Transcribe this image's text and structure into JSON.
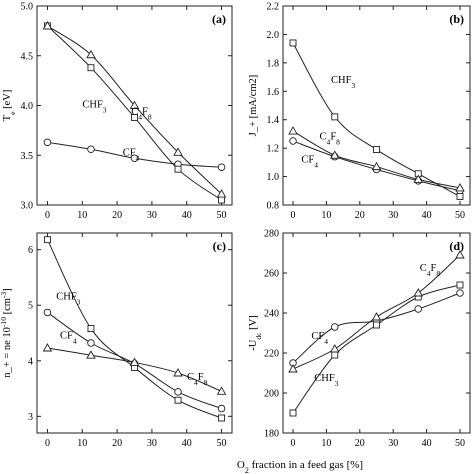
{
  "figure": {
    "shared_xlabel_html": "O<tspan baseline-shift='sub' font-size='8'>2</tspan> fraction in a feed gas [%]",
    "shared_xlabel": "O2 fraction in a feed gas [%]"
  },
  "chart_data": [
    {
      "id": "a",
      "type": "line",
      "panel_label": "(a)",
      "ylabel": "T_e [eV]",
      "xlim": [
        -3,
        53
      ],
      "ylim": [
        3.0,
        5.0
      ],
      "xticks": [
        0,
        10,
        20,
        30,
        40,
        50
      ],
      "yticks": [
        3.0,
        3.5,
        4.0,
        4.5,
        5.0
      ],
      "yticklabels": [
        "3.0",
        "3.5",
        "4.0",
        "4.5",
        "5.0"
      ],
      "x": [
        0,
        12.5,
        25,
        37.5,
        50
      ],
      "series": [
        {
          "name": "CF4",
          "marker": "circle",
          "values": [
            3.63,
            3.56,
            3.47,
            3.41,
            3.38
          ]
        },
        {
          "name": "CHF3",
          "marker": "square",
          "values": [
            4.8,
            4.38,
            3.88,
            3.36,
            3.05
          ]
        },
        {
          "name": "C4F8",
          "marker": "triangle",
          "values": [
            4.8,
            4.51,
            4.0,
            3.53,
            3.11
          ]
        }
      ],
      "labels": [
        {
          "text": "CHF3",
          "x": 13.5,
          "y": 3.98
        },
        {
          "text": "C4F8",
          "x": 27,
          "y": 3.91
        },
        {
          "text": "CF4",
          "x": 24,
          "y": 3.5
        }
      ]
    },
    {
      "id": "b",
      "type": "line",
      "panel_label": "(b)",
      "ylabel": "J+ [mA/cm2]",
      "xlim": [
        -3,
        53
      ],
      "ylim": [
        0.8,
        2.2
      ],
      "xticks": [
        0,
        10,
        20,
        30,
        40,
        50
      ],
      "yticks": [
        0.8,
        1.0,
        1.2,
        1.4,
        1.6,
        1.8,
        2.0,
        2.2
      ],
      "yticklabels": [
        "0.8",
        "1.0",
        "1.2",
        "1.4",
        "1.6",
        "1.8",
        "2.0",
        "2.2"
      ],
      "x": [
        0,
        12.5,
        25,
        37.5,
        50
      ],
      "series": [
        {
          "name": "CF4",
          "marker": "circle",
          "values": [
            1.25,
            1.14,
            1.05,
            0.97,
            0.9
          ]
        },
        {
          "name": "CHF3",
          "marker": "square",
          "values": [
            1.94,
            1.42,
            1.19,
            1.02,
            0.86
          ]
        },
        {
          "name": "C4F8",
          "marker": "triangle",
          "values": [
            1.32,
            1.15,
            1.07,
            0.98,
            0.92
          ]
        }
      ],
      "labels": [
        {
          "text": "CHF3",
          "x": 15,
          "y": 1.66
        },
        {
          "text": "C4F8",
          "x": 11,
          "y": 1.26
        },
        {
          "text": "CF4",
          "x": 5,
          "y": 1.1
        }
      ]
    },
    {
      "id": "c",
      "type": "line",
      "panel_label": "(c)",
      "ylabel": "n+ = ne 10^-10 [cm^-3]",
      "xlim": [
        -3,
        53
      ],
      "ylim": [
        2.7,
        6.3
      ],
      "xticks": [
        0,
        10,
        20,
        30,
        40,
        50
      ],
      "yticks": [
        3,
        4,
        5,
        6
      ],
      "yticklabels": [
        "3",
        "4",
        "5",
        "6"
      ],
      "x": [
        0,
        12.5,
        25,
        37.5,
        50
      ],
      "series": [
        {
          "name": "CF4",
          "marker": "circle",
          "values": [
            4.87,
            4.32,
            3.95,
            3.44,
            3.14
          ]
        },
        {
          "name": "CHF3",
          "marker": "square",
          "values": [
            6.18,
            4.58,
            3.88,
            3.29,
            2.97
          ]
        },
        {
          "name": "C4F8",
          "marker": "triangle",
          "values": [
            4.23,
            4.1,
            3.97,
            3.78,
            3.45
          ]
        }
      ],
      "labels": [
        {
          "text": "CHF3",
          "x": 6,
          "y": 5.1
        },
        {
          "text": "CF4",
          "x": 6,
          "y": 4.4
        },
        {
          "text": "C4F8",
          "x": 43,
          "y": 3.65
        }
      ]
    },
    {
      "id": "d",
      "type": "line",
      "panel_label": "(d)",
      "ylabel": "-U_dc [V]",
      "xlim": [
        -3,
        53
      ],
      "ylim": [
        180,
        280
      ],
      "xticks": [
        0,
        10,
        20,
        30,
        40,
        50
      ],
      "yticks": [
        180,
        200,
        220,
        240,
        260,
        280
      ],
      "yticklabels": [
        "180",
        "200",
        "220",
        "240",
        "260",
        "280"
      ],
      "x": [
        0,
        12.5,
        25,
        37.5,
        50
      ],
      "series": [
        {
          "name": "CF4",
          "marker": "circle",
          "values": [
            215,
            233,
            236,
            242,
            250
          ]
        },
        {
          "name": "CHF3",
          "marker": "square",
          "values": [
            190,
            219,
            234,
            248,
            254
          ]
        },
        {
          "name": "C4F8",
          "marker": "triangle",
          "values": [
            212,
            222,
            238,
            250,
            269
          ]
        }
      ],
      "labels": [
        {
          "text": "C4F8",
          "x": 41,
          "y": 261
        },
        {
          "text": "CF4",
          "x": 8,
          "y": 227
        },
        {
          "text": "CHF3",
          "x": 10,
          "y": 206
        }
      ]
    }
  ]
}
